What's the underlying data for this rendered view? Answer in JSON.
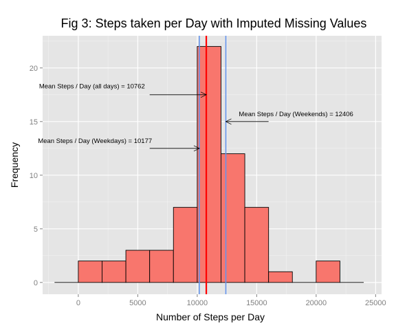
{
  "chart_data": {
    "type": "bar",
    "title": "Fig 3: Steps taken per Day with Imputed Missing Values",
    "xlabel": "Number of Steps per Day",
    "ylabel": "Frequency",
    "xlim": [
      -3000,
      25500
    ],
    "ylim": [
      -1.1,
      23
    ],
    "xticks": [
      0,
      5000,
      10000,
      15000,
      20000,
      25000
    ],
    "yticks": [
      0,
      5,
      10,
      15,
      20
    ],
    "grid": true,
    "bin_width": 2000,
    "bins": [
      {
        "x0": -2000,
        "x1": 0,
        "count": 0
      },
      {
        "x0": 0,
        "x1": 2000,
        "count": 2
      },
      {
        "x0": 2000,
        "x1": 4000,
        "count": 2
      },
      {
        "x0": 4000,
        "x1": 6000,
        "count": 3
      },
      {
        "x0": 6000,
        "x1": 8000,
        "count": 3
      },
      {
        "x0": 8000,
        "x1": 10000,
        "count": 7
      },
      {
        "x0": 10000,
        "x1": 12000,
        "count": 22
      },
      {
        "x0": 12000,
        "x1": 14000,
        "count": 12
      },
      {
        "x0": 14000,
        "x1": 16000,
        "count": 7
      },
      {
        "x0": 16000,
        "x1": 18000,
        "count": 1
      },
      {
        "x0": 18000,
        "x1": 20000,
        "count": 0
      },
      {
        "x0": 20000,
        "x1": 22000,
        "count": 2
      },
      {
        "x0": 22000,
        "x1": 24000,
        "count": 0
      }
    ],
    "bar_color": "#F8766D",
    "vlines": [
      {
        "value": 10177,
        "color": "#6495ED"
      },
      {
        "value": 12406,
        "color": "#6495ED"
      },
      {
        "value": 10762,
        "color": "#FF0000"
      }
    ],
    "annotations": [
      {
        "text": "Mean Steps / Day (all days) =  10762",
        "x": 5600,
        "y": 18.1,
        "tail_x": 6000,
        "tail_y": 17.5,
        "head_x": 10762,
        "head_y": 17.5,
        "anchor": "end"
      },
      {
        "text": "Mean Steps / Day (Weekends) =  12406",
        "x": 13500,
        "y": 15.5,
        "tail_x": 16000,
        "tail_y": 15.0,
        "head_x": 12406,
        "head_y": 15.0,
        "anchor": "start"
      },
      {
        "text": "Mean Steps / Day (Weekdays) =  10177",
        "x": 6200,
        "y": 13.0,
        "tail_x": 6000,
        "tail_y": 12.5,
        "head_x": 10177,
        "head_y": 12.5,
        "anchor": "end"
      }
    ]
  }
}
